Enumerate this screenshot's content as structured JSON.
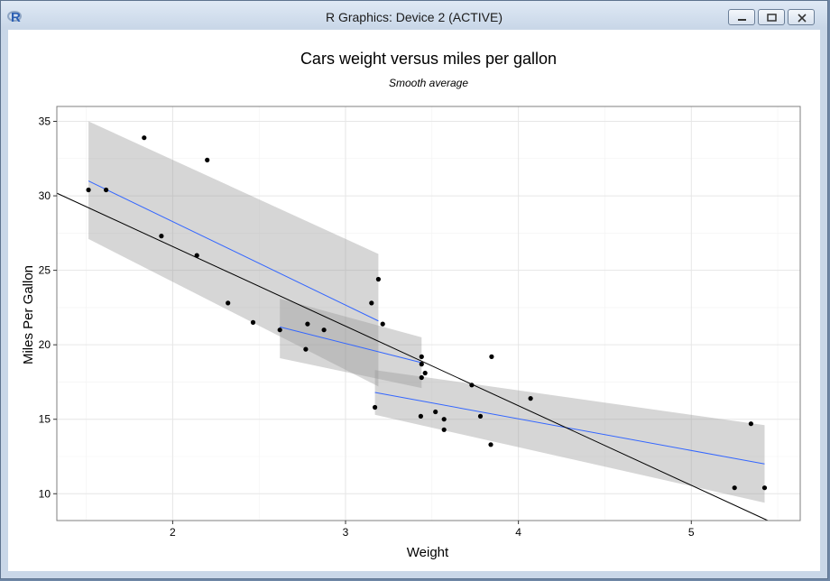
{
  "window": {
    "title": "R Graphics: Device 2 (ACTIVE)",
    "icons": [
      "r-logo-icon",
      "minimize-icon",
      "maximize-icon",
      "close-icon"
    ]
  },
  "chart_data": {
    "type": "scatter",
    "title": "Cars weight versus miles per gallon",
    "subtitle": "Smooth average",
    "xlabel": "Weight",
    "ylabel": "Miles Per Gallon",
    "xlim": [
      1.33,
      5.63
    ],
    "ylim": [
      8.2,
      36.0
    ],
    "xticks": [
      2,
      3,
      4,
      5
    ],
    "yticks": [
      10,
      15,
      20,
      25,
      30,
      35
    ],
    "grid": true,
    "points": [
      [
        1.513,
        30.4
      ],
      [
        1.615,
        30.4
      ],
      [
        1.835,
        33.9
      ],
      [
        1.935,
        27.3
      ],
      [
        2.14,
        26.0
      ],
      [
        2.2,
        32.4
      ],
      [
        2.32,
        22.8
      ],
      [
        2.465,
        21.5
      ],
      [
        2.62,
        21.0
      ],
      [
        2.77,
        19.7
      ],
      [
        2.78,
        21.4
      ],
      [
        2.875,
        21.0
      ],
      [
        3.15,
        22.8
      ],
      [
        3.17,
        15.8
      ],
      [
        3.19,
        24.4
      ],
      [
        3.215,
        21.4
      ],
      [
        3.435,
        15.2
      ],
      [
        3.44,
        17.8
      ],
      [
        3.44,
        18.7
      ],
      [
        3.44,
        19.2
      ],
      [
        3.46,
        18.1
      ],
      [
        3.52,
        15.5
      ],
      [
        3.57,
        15.0
      ],
      [
        3.57,
        14.3
      ],
      [
        3.73,
        17.3
      ],
      [
        3.78,
        15.2
      ],
      [
        3.84,
        13.3
      ],
      [
        3.845,
        19.2
      ],
      [
        4.07,
        16.4
      ],
      [
        5.25,
        10.4
      ],
      [
        5.345,
        14.7
      ],
      [
        5.424,
        10.4
      ]
    ],
    "linear_fit": {
      "intercept": 37.285,
      "slope": -5.344,
      "color": "#000000"
    },
    "smooth_segments": [
      {
        "x": [
          1.513,
          3.19
        ],
        "y": [
          31.0,
          21.6
        ],
        "ci_upper": [
          35.0,
          26.1
        ],
        "ci_lower": [
          27.1,
          17.2
        ]
      },
      {
        "x": [
          2.62,
          3.44
        ],
        "y": [
          21.2,
          18.8
        ],
        "ci_upper": [
          23.1,
          20.5
        ],
        "ci_lower": [
          19.1,
          17.1
        ]
      },
      {
        "x": [
          3.17,
          5.424
        ],
        "y": [
          16.8,
          12.0
        ],
        "ci_upper": [
          18.3,
          14.6
        ],
        "ci_lower": [
          15.3,
          9.4
        ]
      }
    ],
    "colors": {
      "smooth": "#3366ff",
      "band": "#999999",
      "points": "#000000",
      "grid": "#e6e6e6"
    }
  }
}
